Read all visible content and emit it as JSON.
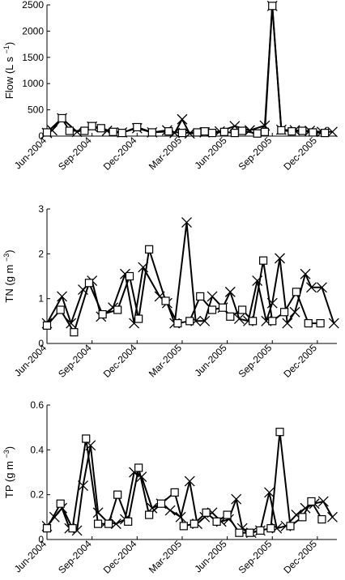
{
  "chart_data": [
    {
      "type": "line",
      "ylabel": "Flow (L s",
      "ylabel_sup": "−1",
      "ylabel_suffix": ")",
      "ylim": [
        0,
        2500
      ],
      "yticks": [
        "0",
        "500",
        "1000",
        "1500",
        "2000",
        "2500"
      ],
      "ytick_values": [
        0,
        500,
        1000,
        1500,
        2000,
        2500
      ],
      "xlim": [
        0,
        19.3
      ],
      "xticks": [
        "Jun-2004",
        "Sep-2004",
        "Dec-2004",
        "Mar-2005",
        "Jun-2005",
        "Sep-2005",
        "Dec-2005"
      ],
      "xtick_values": [
        0,
        3,
        6,
        9,
        12,
        15,
        18
      ],
      "series": [
        {
          "marker": "cross",
          "x": [
            0.0,
            0.35,
            1.0,
            2.0,
            3.0,
            4.0,
            5.0,
            6.0,
            7.0,
            8.0,
            8.5,
            9.0,
            9.5,
            10.5,
            11.5,
            12.5,
            13.5,
            14.5,
            15.0,
            15.6,
            16.5,
            17.5,
            18.3,
            19.0
          ],
          "y": [
            60,
            110,
            340,
            80,
            180,
            100,
            70,
            150,
            70,
            110,
            60,
            320,
            50,
            70,
            90,
            190,
            110,
            200,
            2480,
            120,
            110,
            100,
            80,
            80
          ]
        },
        {
          "marker": "square",
          "x": [
            0.0,
            1.0,
            1.5,
            2.5,
            3.0,
            3.6,
            4.4,
            5.0,
            6.0,
            7.0,
            8.1,
            9.0,
            10.0,
            10.5,
            11.0,
            11.8,
            12.5,
            13.0,
            14.0,
            14.5,
            15.0,
            15.6,
            16.3,
            17.0,
            17.7,
            18.5
          ],
          "y": [
            70,
            340,
            100,
            100,
            190,
            150,
            80,
            60,
            170,
            70,
            90,
            60,
            70,
            90,
            60,
            80,
            60,
            100,
            50,
            80,
            2480,
            110,
            90,
            100,
            70,
            60
          ]
        }
      ]
    },
    {
      "type": "line",
      "ylabel": "TN (g m",
      "ylabel_sup": "−3",
      "ylabel_suffix": ")",
      "ylim": [
        0,
        3
      ],
      "yticks": [
        "0",
        "1",
        "2",
        "3"
      ],
      "ytick_values": [
        0,
        1,
        2,
        3
      ],
      "xlim": [
        0,
        19.3
      ],
      "xticks": [
        "Jun-2004",
        "Sep-2004",
        "Dec-2004",
        "Mar-2005",
        "Jun-2005",
        "Sep-2005",
        "Dec-2005"
      ],
      "xtick_values": [
        0,
        3,
        6,
        9,
        12,
        15,
        18
      ],
      "series": [
        {
          "marker": "cross",
          "x": [
            0.0,
            1.0,
            1.6,
            2.4,
            3.0,
            3.6,
            4.4,
            5.2,
            5.8,
            6.4,
            7.5,
            8.0,
            8.5,
            9.3,
            9.9,
            10.5,
            11.0,
            11.7,
            12.2,
            12.8,
            13.4,
            14.0,
            14.6,
            15.0,
            15.5,
            16.0,
            16.5,
            17.2,
            17.6,
            18.3,
            19.1
          ],
          "y": [
            0.45,
            1.05,
            0.45,
            1.2,
            1.4,
            0.6,
            0.8,
            1.55,
            0.45,
            1.7,
            1.05,
            0.9,
            0.45,
            2.7,
            0.5,
            0.5,
            1.05,
            0.8,
            1.15,
            0.55,
            0.5,
            1.4,
            0.5,
            0.9,
            1.9,
            0.45,
            0.7,
            1.55,
            1.25,
            1.25,
            0.45
          ]
        },
        {
          "marker": "square",
          "x": [
            0.0,
            0.9,
            1.8,
            2.8,
            3.7,
            4.7,
            5.5,
            6.1,
            6.8,
            7.9,
            8.7,
            9.5,
            10.2,
            11.0,
            11.7,
            12.2,
            13.0,
            13.7,
            14.4,
            15.0,
            15.8,
            16.6,
            17.4,
            18.2
          ],
          "y": [
            0.4,
            0.75,
            0.25,
            1.35,
            0.65,
            0.75,
            1.5,
            0.55,
            2.1,
            0.95,
            0.45,
            0.5,
            1.05,
            0.75,
            0.8,
            0.6,
            0.75,
            0.5,
            1.85,
            0.5,
            0.7,
            1.15,
            0.45,
            0.45
          ]
        }
      ]
    },
    {
      "type": "line",
      "ylabel": "TP (g m",
      "ylabel_sup": "−3",
      "ylabel_suffix": ")",
      "ylim": [
        0,
        0.6
      ],
      "yticks": [
        "0",
        "0.2",
        "0.4",
        "0.6"
      ],
      "ytick_values": [
        0,
        0.2,
        0.4,
        0.6
      ],
      "xlim": [
        0,
        19.3
      ],
      "xticks": [
        "Jun-2004",
        "Sep-2004",
        "Dec-2004",
        "Mar-2005",
        "Jun-2005",
        "Sep-2005",
        "Dec-2005"
      ],
      "xtick_values": [
        0,
        3,
        6,
        9,
        12,
        15,
        18
      ],
      "series": [
        {
          "marker": "cross",
          "x": [
            0.0,
            0.5,
            1.0,
            1.5,
            2.0,
            2.4,
            2.9,
            3.4,
            4.0,
            4.6,
            5.2,
            5.8,
            6.3,
            7.0,
            7.6,
            8.2,
            8.9,
            9.5,
            10.0,
            10.5,
            11.0,
            11.6,
            12.1,
            12.6,
            13.0,
            13.6,
            14.2,
            14.8,
            15.3,
            15.9,
            16.6,
            17.2,
            17.8,
            18.4,
            19.0
          ],
          "y": [
            0.06,
            0.1,
            0.14,
            0.05,
            0.04,
            0.24,
            0.42,
            0.12,
            0.08,
            0.07,
            0.09,
            0.3,
            0.28,
            0.14,
            0.16,
            0.13,
            0.1,
            0.26,
            0.07,
            0.1,
            0.12,
            0.08,
            0.09,
            0.18,
            0.05,
            0.03,
            0.04,
            0.21,
            0.05,
            0.06,
            0.11,
            0.14,
            0.16,
            0.17,
            0.1
          ]
        },
        {
          "marker": "square",
          "x": [
            0.0,
            0.9,
            1.7,
            2.6,
            3.4,
            4.1,
            4.7,
            5.4,
            6.1,
            6.8,
            7.6,
            8.5,
            9.1,
            9.8,
            10.6,
            11.3,
            12.0,
            12.8,
            13.5,
            14.2,
            14.9,
            15.5,
            16.2,
            17.0,
            17.6,
            18.3
          ],
          "y": [
            0.05,
            0.16,
            0.05,
            0.45,
            0.07,
            0.07,
            0.2,
            0.08,
            0.32,
            0.11,
            0.16,
            0.21,
            0.06,
            0.07,
            0.12,
            0.08,
            0.11,
            0.03,
            0.03,
            0.04,
            0.05,
            0.48,
            0.06,
            0.1,
            0.17,
            0.09
          ]
        }
      ]
    }
  ]
}
